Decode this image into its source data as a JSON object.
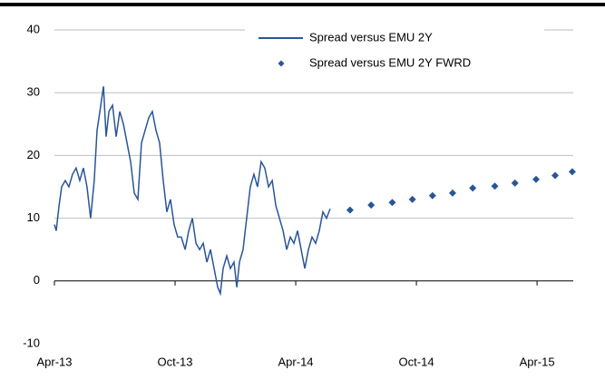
{
  "chart_data": {
    "type": "line",
    "series": [
      {
        "name": "Spread versus EMU 2Y",
        "type": "line",
        "color": "#2a5597",
        "x": [
          0,
          0.09,
          0.23,
          0.36,
          0.54,
          0.72,
          0.9,
          1.08,
          1.26,
          1.44,
          1.62,
          1.8,
          1.98,
          2.12,
          2.26,
          2.44,
          2.57,
          2.71,
          2.89,
          3.07,
          3.25,
          3.43,
          3.61,
          3.79,
          3.97,
          4.15,
          4.33,
          4.51,
          4.69,
          4.87,
          5.05,
          5.23,
          5.41,
          5.59,
          5.77,
          5.95,
          6.13,
          6.31,
          6.5,
          6.68,
          6.86,
          7.04,
          7.22,
          7.4,
          7.58,
          7.76,
          7.94,
          8.12,
          8.25,
          8.39,
          8.57,
          8.75,
          8.93,
          9.07,
          9.2,
          9.38,
          9.56,
          9.74,
          9.92,
          10.1,
          10.28,
          10.46,
          10.65,
          10.83,
          11.01,
          11.19,
          11.37,
          11.55,
          11.73,
          11.91,
          12.09,
          12.27,
          12.45,
          12.63,
          12.81,
          12.99,
          13.17,
          13.35,
          13.53,
          13.71
        ],
        "values": [
          9,
          8,
          12,
          15,
          16,
          15,
          17,
          18,
          16,
          18,
          15,
          10,
          16,
          24,
          27,
          31,
          23,
          27,
          28,
          23,
          27,
          25,
          22,
          19,
          14,
          13,
          22,
          24,
          26,
          27,
          24,
          22,
          16,
          11,
          13,
          9,
          7,
          7,
          5,
          8,
          10,
          6,
          5,
          6,
          3,
          5,
          2,
          -1,
          -2,
          2,
          4,
          2,
          3,
          -1,
          3,
          5,
          10,
          15,
          17,
          15,
          19,
          18,
          15,
          16,
          12,
          10,
          8,
          5,
          7,
          6,
          8,
          5,
          2,
          5,
          7,
          6,
          8,
          11,
          10,
          11.5
        ]
      },
      {
        "name": "Spread versus EMU 2Y FWRD",
        "type": "scatter",
        "color": "#2a5597",
        "x": [
          14.7,
          15.75,
          16.8,
          17.8,
          18.8,
          19.8,
          20.8,
          21.9,
          22.9,
          23.95,
          24.9,
          25.75
        ],
        "values": [
          11.3,
          12.1,
          12.5,
          13.0,
          13.6,
          14.0,
          14.8,
          15.1,
          15.6,
          16.2,
          16.8,
          17.4
        ]
      }
    ],
    "xlim": [
      0,
      25.8
    ],
    "xticks": [
      {
        "value": 0,
        "label": "Apr-13"
      },
      {
        "value": 6,
        "label": "Oct-13"
      },
      {
        "value": 12,
        "label": "Apr-14"
      },
      {
        "value": 18,
        "label": "Oct-14"
      },
      {
        "value": 24,
        "label": "Apr-15"
      }
    ],
    "ylim": [
      -10,
      40
    ],
    "yticks": [
      -10,
      0,
      10,
      20,
      30,
      40
    ],
    "grid": true,
    "legend": "top"
  }
}
